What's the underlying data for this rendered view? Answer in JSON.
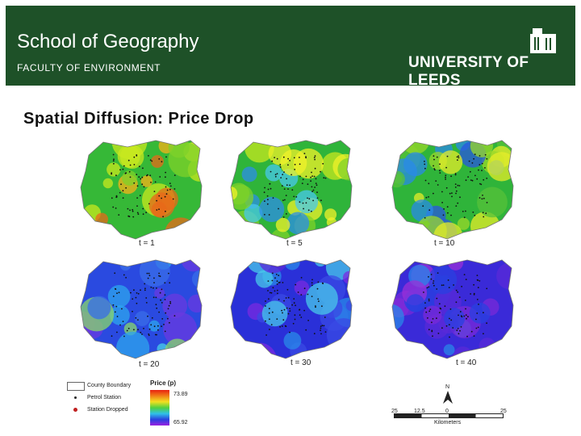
{
  "header": {
    "school": "School of Geography",
    "faculty": "FACULTY OF ENVIRONMENT",
    "university": "UNIVERSITY OF LEEDS"
  },
  "slide": {
    "title": "Spatial Diffusion: Price Drop"
  },
  "maps": [
    {
      "label": "t = 1",
      "colors": [
        "#36b837",
        "#7fd22a",
        "#c8e81f",
        "#f2f22a",
        "#f7b21a",
        "#e8681a"
      ],
      "icon": "map-panel"
    },
    {
      "label": "t = 5",
      "colors": [
        "#2fb43a",
        "#7fd22a",
        "#c8e81f",
        "#f2f22a",
        "#2e8ee8",
        "#48c8ec"
      ],
      "icon": "map-panel"
    },
    {
      "label": "t = 10",
      "colors": [
        "#2fb43a",
        "#57c23a",
        "#9ad82a",
        "#e6ec2a",
        "#2a56e0",
        "#2a8ae8"
      ],
      "icon": "map-panel"
    },
    {
      "label": "t = 20",
      "colors": [
        "#2a4ae0",
        "#3a6ee8",
        "#2ea6ee",
        "#48d0ea",
        "#6a3ae0",
        "#8ad86a"
      ],
      "icon": "map-panel"
    },
    {
      "label": "t = 30",
      "colors": [
        "#2a30d8",
        "#3a4ae4",
        "#5a2ad8",
        "#7a2ae0",
        "#2a8ae8",
        "#48c8ea"
      ],
      "icon": "map-panel"
    },
    {
      "label": "t = 40",
      "colors": [
        "#3a2ad8",
        "#5a2ad8",
        "#7a2ad8",
        "#2a40e0",
        "#9a30d8",
        "#2a86e8"
      ],
      "icon": "map-panel"
    }
  ],
  "legend": {
    "county_boundary": "County Boundary",
    "petrol_station": "Petrol Station",
    "station_dropped": "Station Dropped",
    "price_title": "Price (p)",
    "price_high": "73.89",
    "price_low": "65.92"
  },
  "scale": {
    "north": "N",
    "ticks": [
      "25",
      "12.5",
      "0",
      "25"
    ],
    "unit": "Kilometers"
  }
}
